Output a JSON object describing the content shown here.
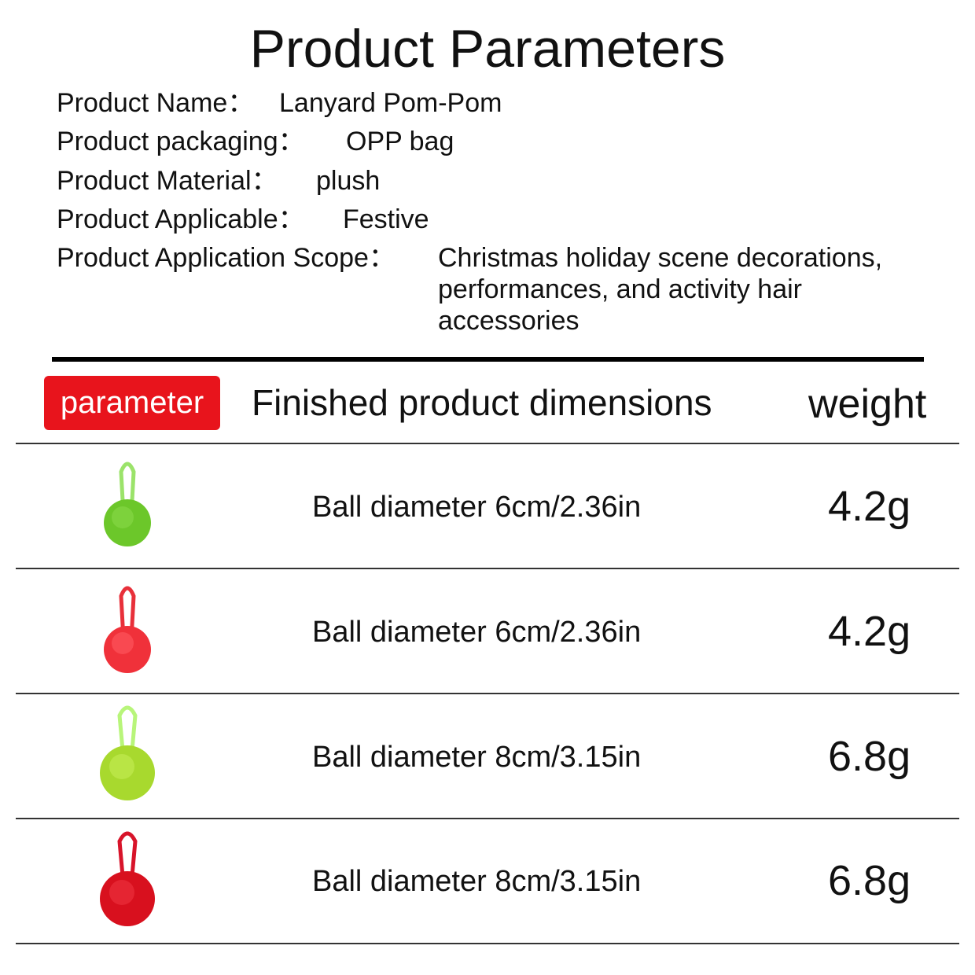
{
  "title": "Product Parameters",
  "specs": [
    {
      "label": "Product Name：",
      "value": "Lanyard Pom-Pom"
    },
    {
      "label": "Product packaging：",
      "value": "OPP bag"
    },
    {
      "label": "Product Material：",
      "value": "plush"
    },
    {
      "label": "Product Applicable：",
      "value": "Festive"
    },
    {
      "label": "Product Application Scope：",
      "value": "Christmas holiday scene decorations, performances, and activity hair accessories"
    }
  ],
  "table": {
    "header": [
      "parameter",
      "Finished product dimensions",
      "weight"
    ],
    "rows": [
      {
        "dimensions": "Ball diameter 6cm/2.36in",
        "weight": "4.2g"
      },
      {
        "dimensions": "Ball diameter 6cm/2.36in",
        "weight": "4.2g"
      },
      {
        "dimensions": "Ball diameter 8cm/3.15in",
        "weight": "6.8g"
      },
      {
        "dimensions": "Ball diameter 8cm/3.15in",
        "weight": "6.8g"
      }
    ]
  }
}
